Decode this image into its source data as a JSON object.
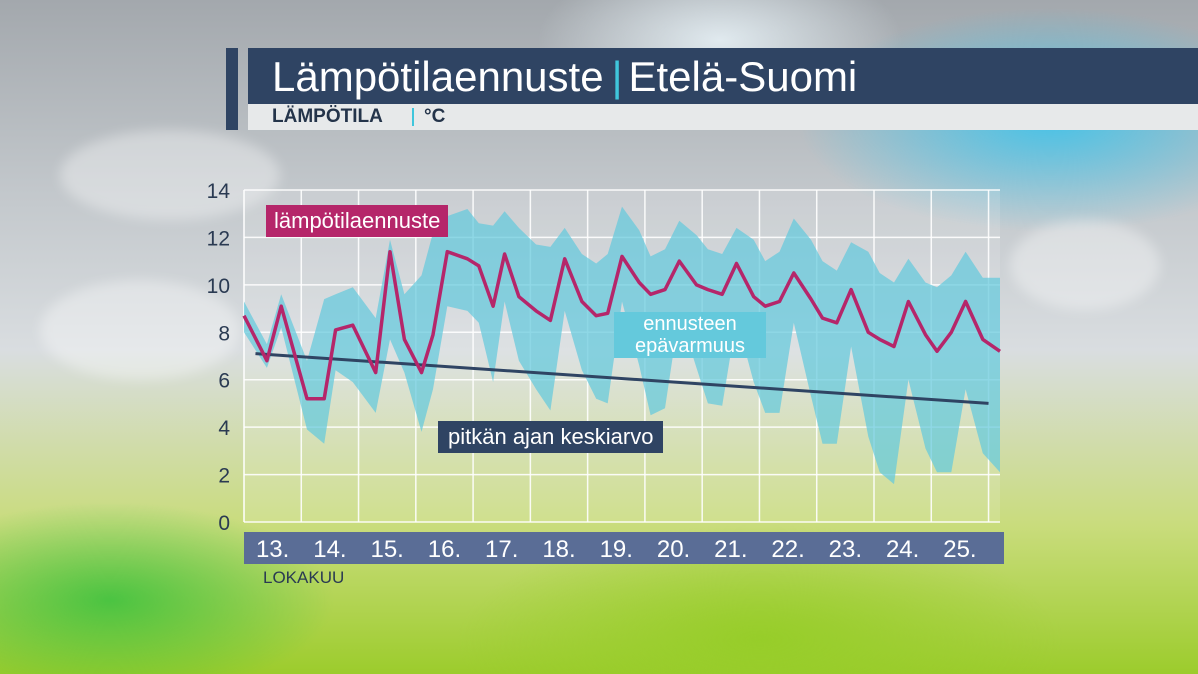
{
  "header": {
    "title": "Lämpötilaennuste",
    "separator": "|",
    "region": "Etelä-Suomi",
    "quantity": "LÄMPÖTILA",
    "unit": "°C"
  },
  "legend": {
    "forecast": "lämpötilaennuste",
    "uncertainty_line1": "ennusteen",
    "uncertainty_line2": "epävarmuus",
    "average": "pitkän ajan keskiarvo"
  },
  "month_label": "LOKAKUU",
  "colors": {
    "forecast": "#b5266a",
    "uncertainty": "#64c9dc",
    "average": "#2f4463",
    "axis_bar": "#5a6d96",
    "grid": "#ffffff"
  },
  "chart_data": {
    "type": "line",
    "ylim": [
      0,
      14
    ],
    "yticks": [
      0,
      2,
      4,
      6,
      8,
      10,
      12,
      14
    ],
    "xlim": [
      12.5,
      25.7
    ],
    "grid": true,
    "categories": [
      "13.",
      "14.",
      "15.",
      "16.",
      "17.",
      "18.",
      "19.",
      "20.",
      "21.",
      "22.",
      "23.",
      "24.",
      "25."
    ],
    "series": [
      {
        "name": "lämpötilaennuste",
        "x": [
          12.5,
          12.9,
          13.15,
          13.6,
          13.9,
          14.1,
          14.4,
          14.8,
          15.05,
          15.3,
          15.6,
          15.8,
          16.05,
          16.4,
          16.6,
          16.85,
          17.05,
          17.3,
          17.6,
          17.85,
          18.1,
          18.4,
          18.65,
          18.85,
          19.1,
          19.4,
          19.6,
          19.85,
          20.1,
          20.4,
          20.6,
          20.85,
          21.1,
          21.4,
          21.6,
          21.85,
          22.1,
          22.4,
          22.6,
          22.85,
          23.1,
          23.4,
          23.6,
          23.85,
          24.1,
          24.4,
          24.6,
          24.85,
          25.1,
          25.4,
          25.7
        ],
        "values": [
          8.7,
          6.8,
          9.1,
          5.2,
          5.2,
          8.1,
          8.3,
          6.3,
          11.4,
          7.7,
          6.3,
          7.9,
          11.4,
          11.1,
          10.8,
          9.1,
          11.3,
          9.5,
          8.9,
          8.5,
          11.1,
          9.3,
          8.7,
          8.8,
          11.2,
          10.1,
          9.6,
          9.8,
          11.0,
          10.0,
          9.8,
          9.6,
          10.9,
          9.5,
          9.1,
          9.3,
          10.5,
          9.4,
          8.6,
          8.4,
          9.8,
          8.0,
          7.7,
          7.4,
          9.3,
          7.9,
          7.2,
          8.0,
          9.3,
          7.7,
          7.2
        ]
      },
      {
        "name": "ennusteen epävarmuus",
        "x": [
          12.5,
          12.9,
          13.15,
          13.6,
          13.9,
          14.1,
          14.4,
          14.8,
          15.05,
          15.3,
          15.6,
          15.8,
          16.05,
          16.4,
          16.6,
          16.85,
          17.05,
          17.3,
          17.6,
          17.85,
          18.1,
          18.4,
          18.65,
          18.85,
          19.1,
          19.4,
          19.6,
          19.85,
          20.1,
          20.4,
          20.6,
          20.85,
          21.1,
          21.4,
          21.6,
          21.85,
          22.1,
          22.4,
          22.6,
          22.85,
          23.1,
          23.4,
          23.6,
          23.85,
          24.1,
          24.4,
          24.6,
          24.85,
          25.1,
          25.4,
          25.7
        ],
        "upper": [
          9.3,
          7.5,
          9.6,
          6.8,
          9.4,
          9.6,
          9.9,
          8.6,
          11.9,
          9.6,
          10.4,
          12.2,
          12.9,
          13.2,
          12.6,
          12.5,
          13.1,
          12.4,
          11.7,
          11.6,
          12.4,
          11.3,
          10.9,
          11.3,
          13.3,
          12.3,
          11.2,
          11.5,
          12.7,
          12.1,
          11.5,
          11.3,
          12.4,
          11.9,
          11.0,
          11.4,
          12.8,
          11.9,
          11.0,
          10.6,
          11.8,
          11.4,
          10.5,
          10.1,
          11.1,
          10.1,
          9.9,
          10.4,
          11.4,
          10.3,
          10.3
        ],
        "lower": [
          8.0,
          6.5,
          8.2,
          3.9,
          3.3,
          6.4,
          5.9,
          4.6,
          7.7,
          6.3,
          3.8,
          5.6,
          9.1,
          8.9,
          8.4,
          5.9,
          9.3,
          6.8,
          5.6,
          4.7,
          8.9,
          6.4,
          5.2,
          5.0,
          9.3,
          6.6,
          4.5,
          4.8,
          8.8,
          6.5,
          5.0,
          4.9,
          8.6,
          5.9,
          4.6,
          4.6,
          8.4,
          5.3,
          3.3,
          3.3,
          7.4,
          3.6,
          2.1,
          1.6,
          6.0,
          3.1,
          2.1,
          2.1,
          5.6,
          2.9,
          2.1
        ]
      },
      {
        "name": "pitkän ajan keskiarvo",
        "x": [
          12.7,
          25.5
        ],
        "values": [
          7.1,
          5.0
        ]
      }
    ]
  }
}
